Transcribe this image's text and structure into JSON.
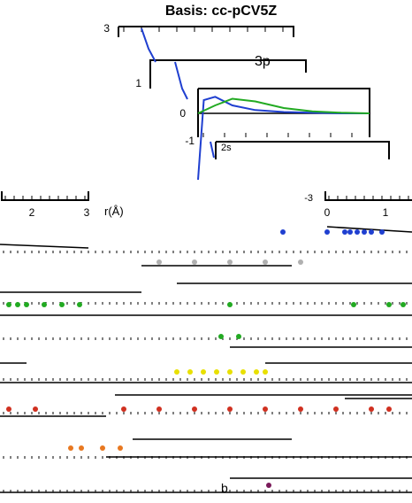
{
  "title": "Basis: cc-pCV5Z",
  "colors": {
    "frame": "#000000",
    "blue": "#1f3fd0",
    "green": "#22aa22",
    "yellow": "#e8e000",
    "red": "#d03020",
    "orange": "#e87820",
    "purple": "#7a1a5a",
    "gray": "#b0b0b0"
  },
  "chart_data": [
    {
      "type": "line",
      "panel": "main",
      "title": "Basis: cc-pCV5Z",
      "ylim": [
        -1,
        3
      ],
      "yticks": [
        "3",
        "1",
        "0",
        "-1"
      ],
      "xticks": [
        "2",
        "3"
      ],
      "xlabel": "r(Å)",
      "inset_label": "3p",
      "series": [
        {
          "name": "2s",
          "color": "blue",
          "x": [
            0.0,
            0.1,
            0.3,
            0.6,
            1.0,
            1.5,
            2.0,
            2.5,
            3.0
          ],
          "y": [
            -1.0,
            0.2,
            0.25,
            0.12,
            0.05,
            0.02,
            0.01,
            0.0,
            0.0
          ]
        },
        {
          "name": "3p",
          "color": "green",
          "x": [
            0.0,
            0.3,
            0.6,
            1.0,
            1.5,
            2.0,
            2.5,
            3.0
          ],
          "y": [
            0.0,
            0.12,
            0.22,
            0.18,
            0.08,
            0.03,
            0.01,
            0.0
          ]
        }
      ]
    },
    {
      "type": "scatter",
      "panel": "lower-right",
      "xlim": [
        0,
        1
      ],
      "xticks": [
        "0",
        "1"
      ],
      "ytick": "-3",
      "label": "b",
      "series": [
        {
          "color": "blue"
        },
        {
          "color": "green"
        },
        {
          "color": "yellow"
        },
        {
          "color": "red"
        },
        {
          "color": "orange"
        },
        {
          "color": "purple"
        }
      ]
    }
  ]
}
